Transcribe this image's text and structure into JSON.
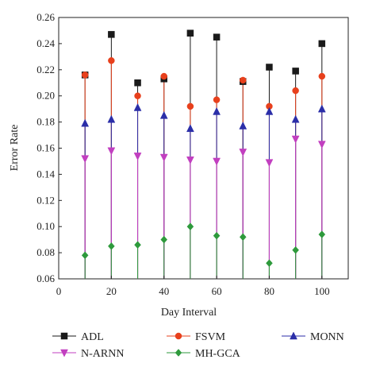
{
  "chart_data": {
    "type": "scatter",
    "title": "",
    "xlabel": "Day Interval",
    "ylabel": "Error Rate",
    "xlim": [
      0,
      110
    ],
    "ylim": [
      0.06,
      0.26
    ],
    "xticks": [
      0,
      20,
      40,
      60,
      80,
      100
    ],
    "yticks": [
      0.06,
      0.08,
      0.1,
      0.12,
      0.14,
      0.16,
      0.18,
      0.2,
      0.22,
      0.24,
      0.26
    ],
    "x": [
      10,
      20,
      30,
      40,
      50,
      60,
      70,
      80,
      90,
      100
    ],
    "grid": false,
    "legend_position": "bottom",
    "series": [
      {
        "name": "ADL",
        "marker": "square",
        "color": "#1a1a1a",
        "values": [
          0.216,
          0.247,
          0.21,
          0.213,
          0.248,
          0.245,
          0.211,
          0.222,
          0.219,
          0.24
        ]
      },
      {
        "name": "FSVM",
        "marker": "circle",
        "color": "#e8401c",
        "values": [
          0.216,
          0.227,
          0.2,
          0.215,
          0.192,
          0.197,
          0.212,
          0.192,
          0.204,
          0.215
        ]
      },
      {
        "name": "MONN",
        "marker": "triangle-up",
        "color": "#2b2ea8",
        "values": [
          0.179,
          0.182,
          0.191,
          0.185,
          0.175,
          0.188,
          0.177,
          0.188,
          0.182,
          0.19
        ]
      },
      {
        "name": "N-ARNN",
        "marker": "triangle-down",
        "color": "#c23fc0",
        "values": [
          0.152,
          0.158,
          0.154,
          0.153,
          0.151,
          0.15,
          0.157,
          0.149,
          0.167,
          0.163
        ]
      },
      {
        "name": "MH-GCA",
        "marker": "diamond",
        "color": "#2e9a3c",
        "values": [
          0.078,
          0.085,
          0.086,
          0.09,
          0.1,
          0.093,
          0.092,
          0.072,
          0.082,
          0.094
        ]
      }
    ]
  }
}
